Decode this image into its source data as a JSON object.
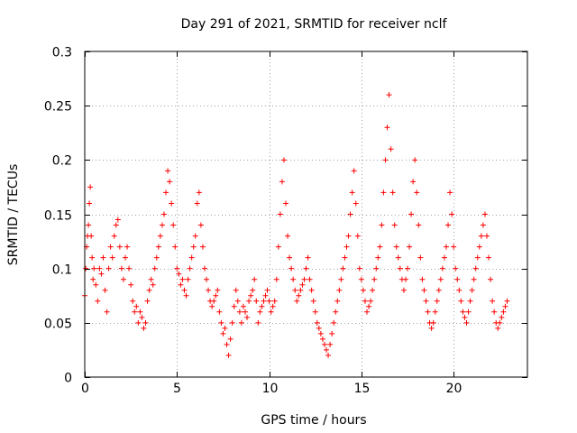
{
  "chart_data": {
    "type": "scatter",
    "title": "Day 291 of 2021, SRMTID for receiver nclf",
    "xlabel": "GPS time / hours",
    "ylabel": "SRMTID / TECUs",
    "xlim": [
      0,
      24
    ],
    "ylim": [
      0,
      0.3
    ],
    "x_ticks": [
      0,
      5,
      10,
      15,
      20
    ],
    "x_tick_labels": [
      "0",
      "5",
      "10",
      "15",
      "20"
    ],
    "y_ticks": [
      0,
      0.05,
      0.1,
      0.15,
      0.2,
      0.25,
      0.3
    ],
    "y_tick_labels": [
      "0",
      "0.05",
      "0.1",
      "0.15",
      "0.2",
      "0.25",
      "0.3"
    ],
    "grid": true,
    "marker": "plus",
    "color": "#ff0000",
    "series": [
      {
        "x": [
          0.0,
          0.05,
          0.1,
          0.15,
          0.2,
          0.25,
          0.3,
          0.35,
          0.4,
          0.45,
          0.5,
          0.6,
          0.7,
          0.8,
          0.9,
          1.0,
          1.1,
          1.2,
          1.3,
          1.4,
          1.5,
          1.6,
          1.7,
          1.8,
          1.9,
          2.0,
          2.1,
          2.2,
          2.3,
          2.4,
          2.5,
          2.6,
          2.7,
          2.8,
          2.9,
          3.0,
          3.1,
          3.2,
          3.3,
          3.4,
          3.5,
          3.6,
          3.7,
          3.8,
          3.9,
          4.0,
          4.1,
          4.2,
          4.3,
          4.4,
          4.5,
          4.6,
          4.7,
          4.8,
          4.9,
          5.0,
          5.1,
          5.2,
          5.3,
          5.4,
          5.5,
          5.6,
          5.7,
          5.8,
          5.9,
          6.0,
          6.1,
          6.2,
          6.3,
          6.4,
          6.5,
          6.6,
          6.7,
          6.8,
          6.9,
          7.0,
          7.1,
          7.2,
          7.3,
          7.4,
          7.5,
          7.6,
          7.7,
          7.8,
          7.9,
          8.0,
          8.1,
          8.2,
          8.3,
          8.4,
          8.5,
          8.6,
          8.7,
          8.8,
          8.9,
          9.0,
          9.1,
          9.2,
          9.3,
          9.4,
          9.5,
          9.6,
          9.7,
          9.8,
          9.9,
          10.0,
          10.1,
          10.2,
          10.3,
          10.4,
          10.5,
          10.6,
          10.7,
          10.8,
          10.9,
          11.0,
          11.1,
          11.2,
          11.3,
          11.4,
          11.5,
          11.6,
          11.7,
          11.8,
          11.9,
          12.0,
          12.1,
          12.2,
          12.3,
          12.4,
          12.5,
          12.6,
          12.7,
          12.8,
          12.9,
          13.0,
          13.1,
          13.2,
          13.3,
          13.4,
          13.5,
          13.6,
          13.7,
          13.8,
          13.9,
          14.0,
          14.1,
          14.2,
          14.3,
          14.4,
          14.5,
          14.6,
          14.7,
          14.8,
          14.9,
          15.0,
          15.1,
          15.2,
          15.3,
          15.4,
          15.5,
          15.6,
          15.7,
          15.8,
          15.9,
          16.0,
          16.1,
          16.2,
          16.3,
          16.4,
          16.5,
          16.6,
          16.7,
          16.8,
          16.9,
          17.0,
          17.1,
          17.2,
          17.3,
          17.4,
          17.5,
          17.6,
          17.7,
          17.8,
          17.9,
          18.0,
          18.1,
          18.2,
          18.3,
          18.4,
          18.5,
          18.6,
          18.7,
          18.8,
          18.9,
          19.0,
          19.1,
          19.2,
          19.3,
          19.4,
          19.5,
          19.6,
          19.7,
          19.8,
          19.9,
          20.0,
          20.1,
          20.2,
          20.3,
          20.4,
          20.5,
          20.6,
          20.7,
          20.8,
          20.9,
          21.0,
          21.1,
          21.2,
          21.3,
          21.4,
          21.5,
          21.6,
          21.7,
          21.8,
          21.9,
          22.0,
          22.1,
          22.2,
          22.3,
          22.4,
          22.5,
          22.6,
          22.7,
          22.8,
          22.9
        ],
        "y": [
          0.075,
          0.1,
          0.12,
          0.13,
          0.14,
          0.16,
          0.175,
          0.13,
          0.11,
          0.09,
          0.1,
          0.085,
          0.07,
          0.1,
          0.095,
          0.11,
          0.08,
          0.06,
          0.1,
          0.12,
          0.11,
          0.13,
          0.14,
          0.145,
          0.12,
          0.1,
          0.09,
          0.11,
          0.12,
          0.1,
          0.085,
          0.07,
          0.06,
          0.065,
          0.05,
          0.06,
          0.055,
          0.045,
          0.05,
          0.07,
          0.08,
          0.09,
          0.085,
          0.1,
          0.11,
          0.12,
          0.13,
          0.14,
          0.15,
          0.17,
          0.19,
          0.18,
          0.16,
          0.14,
          0.12,
          0.1,
          0.095,
          0.085,
          0.09,
          0.08,
          0.075,
          0.09,
          0.1,
          0.11,
          0.12,
          0.13,
          0.16,
          0.17,
          0.14,
          0.12,
          0.1,
          0.09,
          0.08,
          0.07,
          0.065,
          0.07,
          0.075,
          0.08,
          0.06,
          0.05,
          0.04,
          0.045,
          0.03,
          0.02,
          0.035,
          0.05,
          0.065,
          0.08,
          0.07,
          0.06,
          0.05,
          0.065,
          0.06,
          0.055,
          0.07,
          0.075,
          0.08,
          0.09,
          0.07,
          0.05,
          0.06,
          0.065,
          0.07,
          0.075,
          0.08,
          0.07,
          0.06,
          0.065,
          0.07,
          0.09,
          0.12,
          0.15,
          0.18,
          0.2,
          0.16,
          0.13,
          0.11,
          0.1,
          0.09,
          0.08,
          0.07,
          0.075,
          0.08,
          0.085,
          0.09,
          0.1,
          0.11,
          0.09,
          0.08,
          0.07,
          0.06,
          0.05,
          0.045,
          0.04,
          0.035,
          0.03,
          0.025,
          0.02,
          0.03,
          0.04,
          0.05,
          0.06,
          0.07,
          0.08,
          0.09,
          0.1,
          0.11,
          0.12,
          0.13,
          0.15,
          0.17,
          0.19,
          0.16,
          0.13,
          0.1,
          0.09,
          0.08,
          0.07,
          0.06,
          0.065,
          0.07,
          0.08,
          0.09,
          0.1,
          0.11,
          0.12,
          0.14,
          0.17,
          0.2,
          0.23,
          0.26,
          0.21,
          0.17,
          0.14,
          0.12,
          0.11,
          0.1,
          0.09,
          0.08,
          0.09,
          0.1,
          0.12,
          0.15,
          0.18,
          0.2,
          0.17,
          0.14,
          0.11,
          0.09,
          0.08,
          0.07,
          0.06,
          0.05,
          0.045,
          0.05,
          0.06,
          0.07,
          0.08,
          0.09,
          0.1,
          0.11,
          0.12,
          0.14,
          0.17,
          0.15,
          0.12,
          0.1,
          0.09,
          0.08,
          0.07,
          0.06,
          0.055,
          0.05,
          0.06,
          0.07,
          0.08,
          0.09,
          0.1,
          0.11,
          0.12,
          0.13,
          0.14,
          0.15,
          0.13,
          0.11,
          0.09,
          0.07,
          0.06,
          0.05,
          0.045,
          0.05,
          0.055,
          0.06,
          0.065,
          0.07
        ]
      }
    ]
  }
}
